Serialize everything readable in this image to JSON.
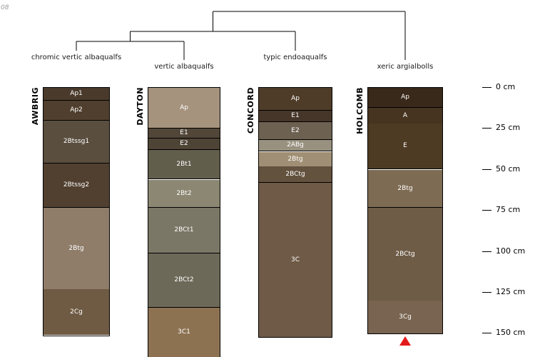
{
  "page": {
    "corner_text": "08"
  },
  "chart_data": {
    "type": "soil-profile-sketch",
    "description": "Dendrogram over four soil profile sketches with depth axis",
    "depth_axis": {
      "unit": "cm",
      "ticks": [
        0,
        25,
        50,
        75,
        100,
        125,
        150
      ]
    },
    "axis_tick_labels": [
      "0 cm",
      "25 cm",
      "50 cm",
      "75 cm",
      "100 cm",
      "125 cm",
      "150 cm"
    ],
    "dendrogram": {
      "structure": "(((AWBRIG, DAYTON), CONCORD), HOLCOMB)",
      "line_color": "#000000"
    },
    "marker_color": "#e31a1c",
    "profiles": [
      {
        "name": "AWBRIG",
        "taxonomy": "chromic vertic albaqualfs",
        "horizons": [
          {
            "label": "Ap1",
            "top_cm": 0,
            "bottom_cm": 8,
            "color": "#4a3a2b"
          },
          {
            "label": "Ap2",
            "top_cm": 8,
            "bottom_cm": 20,
            "color": "#503f2e"
          },
          {
            "label": "2Btssg1",
            "top_cm": 20,
            "bottom_cm": 46,
            "color": "#5a4e3f"
          },
          {
            "label": "2Btssg2",
            "top_cm": 46,
            "bottom_cm": 73,
            "color": "#514030"
          },
          {
            "label": "2Btg",
            "top_cm": 73,
            "bottom_cm": 123,
            "color": "#8f7d6a"
          },
          {
            "label": "2Cg",
            "top_cm": 123,
            "bottom_cm": 151,
            "color": "#6f5a43"
          }
        ]
      },
      {
        "name": "DAYTON",
        "taxonomy": "vertic albaqualfs",
        "horizons": [
          {
            "label": "Ap",
            "top_cm": 0,
            "bottom_cm": 25,
            "color": "#a6937d"
          },
          {
            "label": "E1",
            "top_cm": 25,
            "bottom_cm": 31,
            "color": "#524638"
          },
          {
            "label": "E2",
            "top_cm": 31,
            "bottom_cm": 38,
            "color": "#4e4436"
          },
          {
            "label": "2Bt1",
            "top_cm": 38,
            "bottom_cm": 56,
            "color": "#625e4c"
          },
          {
            "label": "2Bt2",
            "top_cm": 56,
            "bottom_cm": 73,
            "color": "#8c8772"
          },
          {
            "label": "2BCt1",
            "top_cm": 73,
            "bottom_cm": 101,
            "color": "#7b7766"
          },
          {
            "label": "2BCt2",
            "top_cm": 101,
            "bottom_cm": 134,
            "color": "#6d6959"
          },
          {
            "label": "3C1",
            "top_cm": 134,
            "bottom_cm": 164,
            "color": "#8d7252"
          }
        ]
      },
      {
        "name": "CONCORD",
        "taxonomy": "typic endoaqualfs",
        "horizons": [
          {
            "label": "Ap",
            "top_cm": 0,
            "bottom_cm": 14,
            "color": "#4e3c29"
          },
          {
            "label": "E1",
            "top_cm": 14,
            "bottom_cm": 21,
            "color": "#46362a"
          },
          {
            "label": "E2",
            "top_cm": 21,
            "bottom_cm": 32,
            "color": "#6d6152"
          },
          {
            "label": "2ABg",
            "top_cm": 32,
            "bottom_cm": 39,
            "color": "#99917f"
          },
          {
            "label": "2Btg",
            "top_cm": 39,
            "bottom_cm": 48,
            "color": "#a08f74"
          },
          {
            "label": "2BCtg",
            "top_cm": 48,
            "bottom_cm": 58,
            "color": "#63523e"
          },
          {
            "label": "3C",
            "top_cm": 58,
            "bottom_cm": 152,
            "color": "#6e5a46"
          }
        ]
      },
      {
        "name": "HOLCOMB",
        "taxonomy": "xeric argialbolls",
        "horizons": [
          {
            "label": "Ap",
            "top_cm": 0,
            "bottom_cm": 12,
            "color": "#39291a"
          },
          {
            "label": "A",
            "top_cm": 12,
            "bottom_cm": 22,
            "color": "#473420"
          },
          {
            "label": "E",
            "top_cm": 22,
            "bottom_cm": 50,
            "color": "#4e3b23"
          },
          {
            "label": "2Btg",
            "top_cm": 50,
            "bottom_cm": 73,
            "color": "#7e6b53"
          },
          {
            "label": "2BCtg",
            "top_cm": 73,
            "bottom_cm": 130,
            "color": "#6e5c47"
          },
          {
            "label": "3Cg",
            "top_cm": 130,
            "bottom_cm": 150,
            "color": "#786450"
          }
        ],
        "marker": {
          "shape": "triangle-up",
          "color": "#e31a1c",
          "position_cm": 152
        }
      }
    ]
  }
}
